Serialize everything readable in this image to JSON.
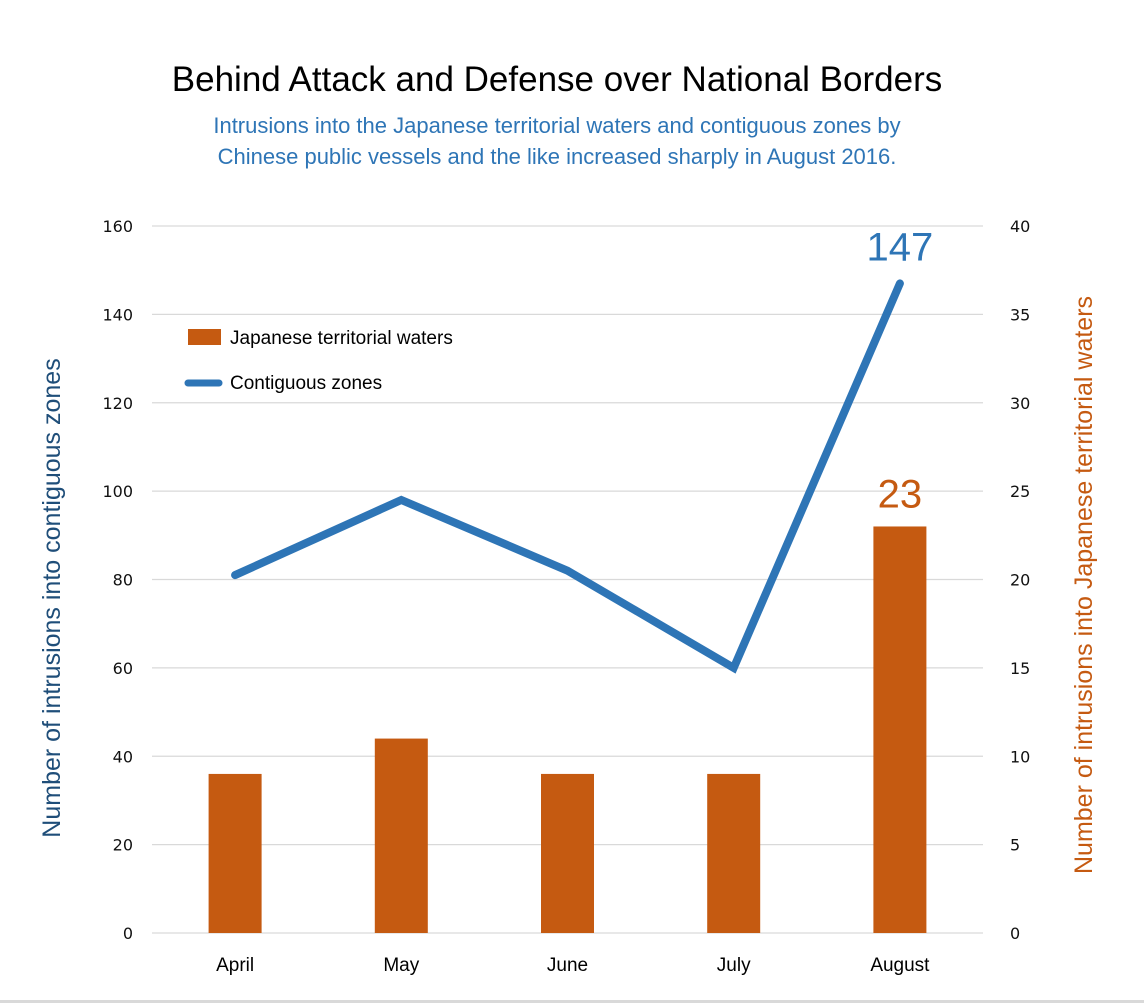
{
  "chart_data": {
    "type": "bar+line",
    "title": "Behind Attack and Defense over National Borders",
    "subtitle": "Intrusions into the Japanese territorial waters and contiguous zones by Chinese public vessels and the like increased sharply in August 2016.",
    "subtitle_lines": [
      "Intrusions into the Japanese territorial waters and contiguous zones by",
      "Chinese public vessels and the like increased sharply in August 2016."
    ],
    "categories": [
      "April",
      "May",
      "June",
      "July",
      "August"
    ],
    "series": [
      {
        "name": "Japanese territorial waters",
        "type": "bar",
        "axis": "right",
        "color": "#c55a11",
        "values": [
          9,
          11,
          9,
          9,
          23
        ],
        "data_labels": {
          "August": "23"
        }
      },
      {
        "name": "Contiguous zones",
        "type": "line",
        "axis": "left",
        "color": "#2e75b6",
        "values": [
          81,
          98,
          82,
          60,
          147
        ],
        "data_labels": {
          "August": "147"
        }
      }
    ],
    "left_axis": {
      "label": "Number of intrusions into contiguous zones",
      "label_color": "#1f4e79",
      "range": [
        0,
        160
      ],
      "ticks": [
        "0",
        "20",
        "40",
        "60",
        "80",
        "100",
        "120",
        "140",
        "160"
      ]
    },
    "right_axis": {
      "label": "Number of intrusions into Japanese territorial waters",
      "label_color": "#c55a11",
      "range": [
        0,
        40
      ],
      "ticks": [
        "0",
        "5",
        "10",
        "15",
        "20",
        "25",
        "30",
        "35",
        "40"
      ]
    },
    "grid": true,
    "legend": {
      "placement": "top-left",
      "entries": [
        "Japanese territorial waters",
        "Contiguous zones"
      ]
    }
  }
}
